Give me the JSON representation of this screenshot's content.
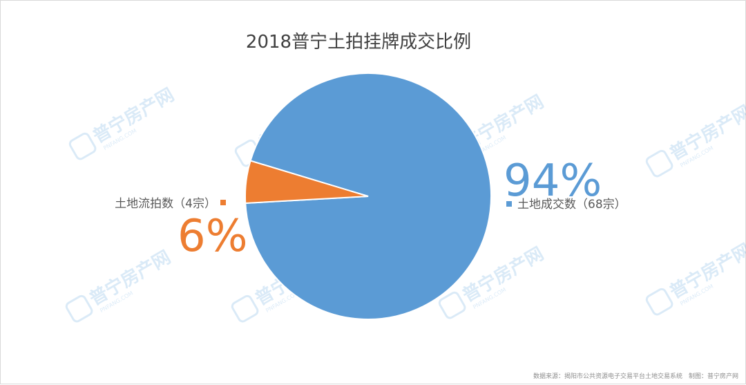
{
  "chart_data": {
    "type": "pie",
    "title": "2018普宁土拍挂牌成交比例",
    "slices": [
      {
        "label": "土地成交数（68宗）",
        "value": 68,
        "percent_label": "94%",
        "color": "#5B9BD5"
      },
      {
        "label": "土地流拍数（4宗）",
        "value": 4,
        "percent_label": "6%",
        "color": "#ED7D31"
      }
    ],
    "legend": "beside-slices"
  },
  "watermark": {
    "text": "普宁房产网",
    "subtext": "PNFANG.COM"
  },
  "source": "数据来源：揭阳市公共资源电子交易平台土地交易系统　制图：普宁房产网"
}
